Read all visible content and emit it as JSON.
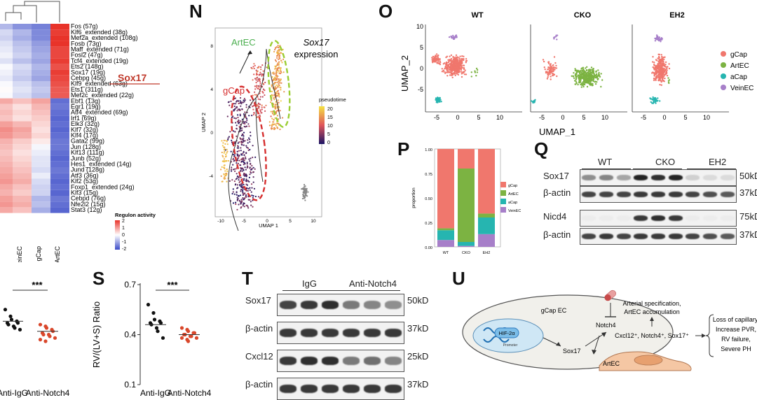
{
  "panels": {
    "N": "N",
    "O": "O",
    "P": "P",
    "Q": "Q",
    "S": "S",
    "T": "T",
    "U": "U"
  },
  "heatmap": {
    "columns": [
      "VeinEC",
      "gCap",
      "ArtEC"
    ],
    "highlight": "Sox17",
    "legend_title": "Regulon activity",
    "legend_ticks": [
      "2",
      "1",
      "0",
      "-1",
      "-2"
    ],
    "rows": [
      {
        "label": "Fos (57g)",
        "v": [
          -1.2,
          -1.4,
          2.0
        ]
      },
      {
        "label": "Klf6_extended (38g)",
        "v": [
          -0.8,
          -1.3,
          1.9
        ]
      },
      {
        "label": "Mef2a_extended (108g)",
        "v": [
          -0.9,
          -1.3,
          2.0
        ]
      },
      {
        "label": "Fosb (73g)",
        "v": [
          -0.7,
          -1.1,
          2.0
        ]
      },
      {
        "label": "Maff_extended (71g)",
        "v": [
          -0.6,
          -1.0,
          1.8
        ]
      },
      {
        "label": "Fosl2 (47g)",
        "v": [
          -0.5,
          -0.9,
          1.8
        ]
      },
      {
        "label": "Tcf4_extended (19g)",
        "v": [
          -0.7,
          -1.0,
          1.9
        ]
      },
      {
        "label": "Ets2 (148g)",
        "v": [
          -0.4,
          -0.8,
          1.7
        ]
      },
      {
        "label": "Sox17 (19g)",
        "v": [
          -0.5,
          -0.9,
          1.9
        ]
      },
      {
        "label": "Cebpg (45g)",
        "v": [
          -0.6,
          -1.0,
          1.8
        ]
      },
      {
        "label": "Klf9_extended (63g)",
        "v": [
          -0.4,
          -0.7,
          1.7
        ]
      },
      {
        "label": "Ets1 (311g)",
        "v": [
          -0.3,
          -0.6,
          1.6
        ]
      },
      {
        "label": "Mef2c_extended (22g)",
        "v": [
          -0.4,
          -0.7,
          1.6
        ]
      },
      {
        "label": "Ebf1 (13g)",
        "v": [
          0.6,
          0.9,
          -1.6
        ]
      },
      {
        "label": "Egr1 (19g)",
        "v": [
          0.3,
          0.7,
          -1.5
        ]
      },
      {
        "label": "Atf4_extended (69g)",
        "v": [
          0.4,
          0.6,
          -1.6
        ]
      },
      {
        "label": "Irf1 (69g)",
        "v": [
          0.3,
          0.5,
          -1.7
        ]
      },
      {
        "label": "Elk3 (32g)",
        "v": [
          0.7,
          0.4,
          -1.6
        ]
      },
      {
        "label": "Klf7 (32g)",
        "v": [
          0.9,
          0.3,
          -1.7
        ]
      },
      {
        "label": "Klf4 (17g)",
        "v": [
          0.8,
          0.4,
          -1.6
        ]
      },
      {
        "label": "Gata2 (99g)",
        "v": [
          0.5,
          0.2,
          -1.5
        ]
      },
      {
        "label": "Jun (128g)",
        "v": [
          0.4,
          -0.1,
          -1.5
        ]
      },
      {
        "label": "Klf13 (111g)",
        "v": [
          0.3,
          -0.2,
          -1.6
        ]
      },
      {
        "label": "Junb (52g)",
        "v": [
          0.4,
          -0.3,
          -1.7
        ]
      },
      {
        "label": "Hes1_extended (14g)",
        "v": [
          0.5,
          -0.3,
          -1.6
        ]
      },
      {
        "label": "Jund (128g)",
        "v": [
          0.6,
          -0.4,
          -1.5
        ]
      },
      {
        "label": "Atf3 (36g)",
        "v": [
          0.7,
          -0.2,
          -1.6
        ]
      },
      {
        "label": "Klf2 (53g)",
        "v": [
          0.8,
          -0.4,
          -1.7
        ]
      },
      {
        "label": "Foxp1_extended (24g)",
        "v": [
          0.6,
          -0.5,
          -1.6
        ]
      },
      {
        "label": "Klf3 (15g)",
        "v": [
          0.5,
          -0.5,
          -1.7
        ]
      },
      {
        "label": "Cebpd (76g)",
        "v": [
          0.7,
          -0.8,
          -1.5
        ]
      },
      {
        "label": "Nfe2l2 (15g)",
        "v": [
          0.8,
          -0.7,
          -1.6
        ]
      },
      {
        "label": "Stat3 (12g)",
        "v": [
          0.6,
          -0.9,
          -1.7
        ]
      }
    ]
  },
  "panel_N": {
    "title_gene": "Sox17",
    "title_rest": "expression",
    "label_artec": "ArtEC",
    "label_gcap": "gCap",
    "legend_title": "pseudotime",
    "legend_ticks": [
      "20",
      "15",
      "10",
      "5",
      "0"
    ],
    "xlabel": "UMAP 1",
    "ylabel": "UMAP 2",
    "xticks": [
      "-10",
      "-5",
      "0",
      "5",
      "10"
    ],
    "yticks": [
      "8",
      "4",
      "0",
      "-4"
    ]
  },
  "panel_O": {
    "titles": [
      "WT",
      "CKO",
      "EH2"
    ],
    "xlabel": "UMAP_1",
    "ylabel": "UMAP_2",
    "xticks": [
      "-5",
      "0",
      "5",
      "10"
    ],
    "yticks": [
      "10",
      "5",
      "0",
      "-5"
    ],
    "legend": [
      {
        "name": "gCap",
        "color": "#f0776d"
      },
      {
        "name": "ArtEC",
        "color": "#7cb342"
      },
      {
        "name": "aCap",
        "color": "#26b5b0"
      },
      {
        "name": "VeinEC",
        "color": "#a77fc9"
      }
    ]
  },
  "panel_P": {
    "chart_data": {
      "type": "bar",
      "categories": [
        "WT",
        "CKO",
        "EH2"
      ],
      "ylabel": "proportion",
      "ylim": [
        0,
        1
      ],
      "yticks": [
        "1.00",
        "0.75",
        "0.50",
        "0.25",
        "0.00"
      ],
      "series": [
        {
          "name": "VeinEC",
          "color": "#a77fc9",
          "values": [
            0.07,
            0.01,
            0.13
          ]
        },
        {
          "name": "aCap",
          "color": "#26b5b0",
          "values": [
            0.1,
            0.04,
            0.17
          ]
        },
        {
          "name": "ArtEC",
          "color": "#7cb342",
          "values": [
            0.02,
            0.75,
            0.04
          ]
        },
        {
          "name": "gCap",
          "color": "#f0776d",
          "values": [
            0.81,
            0.2,
            0.66
          ]
        }
      ],
      "legend_order": [
        "gCap",
        "ArtEC",
        "aCap",
        "VeinEC"
      ]
    }
  },
  "panel_Q": {
    "groups": [
      "WT",
      "CKO",
      "EH2"
    ],
    "rows": [
      {
        "label": "Sox17",
        "size": "50kD",
        "intensity": [
          0.45,
          0.5,
          0.35,
          0.95,
          0.9,
          0.95,
          0.15,
          0.1,
          0.1
        ]
      },
      {
        "label": "β-actin",
        "size": "37kD",
        "intensity": [
          0.8,
          0.8,
          0.8,
          0.85,
          0.85,
          0.85,
          0.8,
          0.75,
          0.7
        ]
      },
      {
        "label": "Nicd4",
        "size": "75kD",
        "intensity": [
          0.02,
          0.02,
          0.02,
          0.85,
          0.9,
          0.85,
          0.02,
          0.02,
          0.02
        ]
      },
      {
        "label": "β-actin",
        "size": "37kD",
        "intensity": [
          0.8,
          0.85,
          0.8,
          0.85,
          0.85,
          0.85,
          0.8,
          0.75,
          0.7
        ]
      }
    ]
  },
  "panel_R": {
    "significance": "***",
    "xticks": [
      "Anti-IgG",
      "Anti-Notch4"
    ]
  },
  "panel_S": {
    "ylabel": "RV/(LV+S) Ratio",
    "yticks": [
      "0.7",
      "0.4",
      "0.1"
    ],
    "significance": "***",
    "xticks": [
      "Anti-IgG",
      "Anti-Notch4"
    ],
    "chart_data": {
      "type": "scatter",
      "categories": [
        "Anti-IgG",
        "Anti-Notch4"
      ],
      "ylim": [
        0.1,
        0.7
      ],
      "series": [
        {
          "name": "Anti-IgG",
          "values": [
            0.58,
            0.53,
            0.49,
            0.48,
            0.47,
            0.47,
            0.46,
            0.44,
            0.42,
            0.38
          ]
        },
        {
          "name": "Anti-Notch4",
          "values": [
            0.44,
            0.43,
            0.42,
            0.41,
            0.41,
            0.4,
            0.4,
            0.39,
            0.39,
            0.38,
            0.38,
            0.37,
            0.36
          ]
        }
      ],
      "means": [
        0.46,
        0.4
      ]
    }
  },
  "panel_T": {
    "groups": [
      "IgG",
      "Anti-Notch4"
    ],
    "rows": [
      {
        "label": "Sox17",
        "size": "50kD",
        "intensity": [
          0.8,
          0.85,
          0.9,
          0.55,
          0.5,
          0.45
        ]
      },
      {
        "label": "β-actin",
        "size": "37kD",
        "intensity": [
          0.85,
          0.85,
          0.85,
          0.85,
          0.85,
          0.85
        ]
      },
      {
        "label": "Cxcl12",
        "size": "25kD",
        "intensity": [
          0.85,
          0.9,
          0.9,
          0.55,
          0.6,
          0.5
        ]
      },
      {
        "label": "β-actin",
        "size": "37kD",
        "intensity": [
          0.85,
          0.85,
          0.85,
          0.85,
          0.85,
          0.85
        ]
      }
    ]
  },
  "panel_U": {
    "cell_label": "gCap EC",
    "hif": "HIF-2α",
    "promoter": "Promoter",
    "sox17": "Sox17",
    "notch4": "Notch4",
    "artec": "ArtEC",
    "arterial_line1": "Arterial specification,",
    "arterial_line2": "ArtEC accumulation",
    "markers": "Cxcl12⁺, Notch4⁺, Sox17⁺",
    "outcomes": [
      "Loss of capillary,",
      "Increase PVR,",
      "RV failure,",
      "Severe PH"
    ]
  }
}
